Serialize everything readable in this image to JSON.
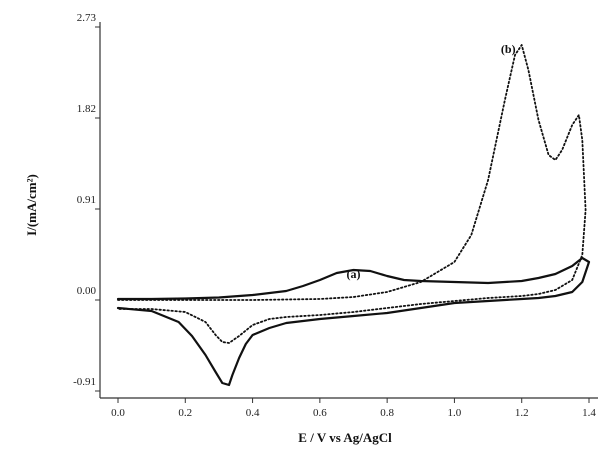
{
  "chart_data": {
    "type": "line",
    "title": "",
    "xlabel": "E / V  vs Ag/AgCl",
    "ylabel": "I/(mA/cm²)",
    "xlim": [
      -0.1,
      1.4
    ],
    "ylim": [
      -0.91,
      2.73
    ],
    "x_ticks": [
      0.0,
      0.2,
      0.4,
      0.6,
      0.8,
      1.0,
      1.2,
      1.4
    ],
    "x_tick_labels": [
      "0.0",
      "0.2",
      "0.4",
      "0.6",
      "0.8",
      "1.0",
      "1.2",
      "1.4"
    ],
    "y_ticks": [
      -0.91,
      0.0,
      0.91,
      1.82,
      2.73
    ],
    "y_tick_labels": [
      "-0.91",
      "0.00",
      "0.91",
      "1.82",
      "2.73"
    ],
    "grid": false,
    "legend": "none",
    "annotations": [
      {
        "text": "(a)",
        "x": 0.7,
        "y": 0.22
      },
      {
        "text": "(b)",
        "x": 1.16,
        "y": 2.47
      }
    ],
    "series": [
      {
        "name": "(a)",
        "style": "solid",
        "x": [
          0.0,
          0.1,
          0.2,
          0.3,
          0.4,
          0.5,
          0.55,
          0.6,
          0.65,
          0.7,
          0.75,
          0.8,
          0.85,
          0.9,
          1.0,
          1.1,
          1.2,
          1.25,
          1.3,
          1.35,
          1.38,
          1.4,
          1.38,
          1.35,
          1.3,
          1.25,
          1.2,
          1.1,
          1.0,
          0.9,
          0.8,
          0.7,
          0.6,
          0.5,
          0.45,
          0.4,
          0.38,
          0.36,
          0.34,
          0.33,
          0.31,
          0.29,
          0.26,
          0.22,
          0.18,
          0.1,
          0.0
        ],
        "y": [
          0.01,
          0.01,
          0.015,
          0.025,
          0.05,
          0.09,
          0.14,
          0.2,
          0.27,
          0.3,
          0.29,
          0.24,
          0.2,
          0.19,
          0.18,
          0.17,
          0.19,
          0.22,
          0.26,
          0.34,
          0.42,
          0.38,
          0.18,
          0.08,
          0.04,
          0.02,
          0.01,
          -0.01,
          -0.03,
          -0.08,
          -0.13,
          -0.16,
          -0.19,
          -0.23,
          -0.28,
          -0.35,
          -0.44,
          -0.58,
          -0.75,
          -0.85,
          -0.83,
          -0.72,
          -0.55,
          -0.36,
          -0.22,
          -0.11,
          -0.08
        ]
      },
      {
        "name": "(b)",
        "style": "dotted",
        "x": [
          0.0,
          0.1,
          0.2,
          0.3,
          0.4,
          0.5,
          0.6,
          0.7,
          0.8,
          0.9,
          1.0,
          1.05,
          1.1,
          1.15,
          1.18,
          1.2,
          1.22,
          1.25,
          1.28,
          1.3,
          1.32,
          1.35,
          1.37,
          1.38,
          1.39,
          1.38,
          1.35,
          1.3,
          1.25,
          1.2,
          1.1,
          1.0,
          0.9,
          0.8,
          0.7,
          0.6,
          0.5,
          0.45,
          0.4,
          0.36,
          0.33,
          0.31,
          0.29,
          0.26,
          0.2,
          0.1,
          0.0
        ],
        "y": [
          0.0,
          0.0,
          0.0,
          0.0,
          0.0,
          0.005,
          0.01,
          0.03,
          0.08,
          0.18,
          0.38,
          0.65,
          1.2,
          2.0,
          2.45,
          2.55,
          2.3,
          1.8,
          1.45,
          1.4,
          1.5,
          1.75,
          1.85,
          1.6,
          0.9,
          0.45,
          0.2,
          0.1,
          0.06,
          0.04,
          0.02,
          -0.01,
          -0.04,
          -0.08,
          -0.12,
          -0.15,
          -0.17,
          -0.19,
          -0.25,
          -0.36,
          -0.43,
          -0.42,
          -0.35,
          -0.22,
          -0.12,
          -0.09,
          -0.09
        ]
      }
    ]
  }
}
